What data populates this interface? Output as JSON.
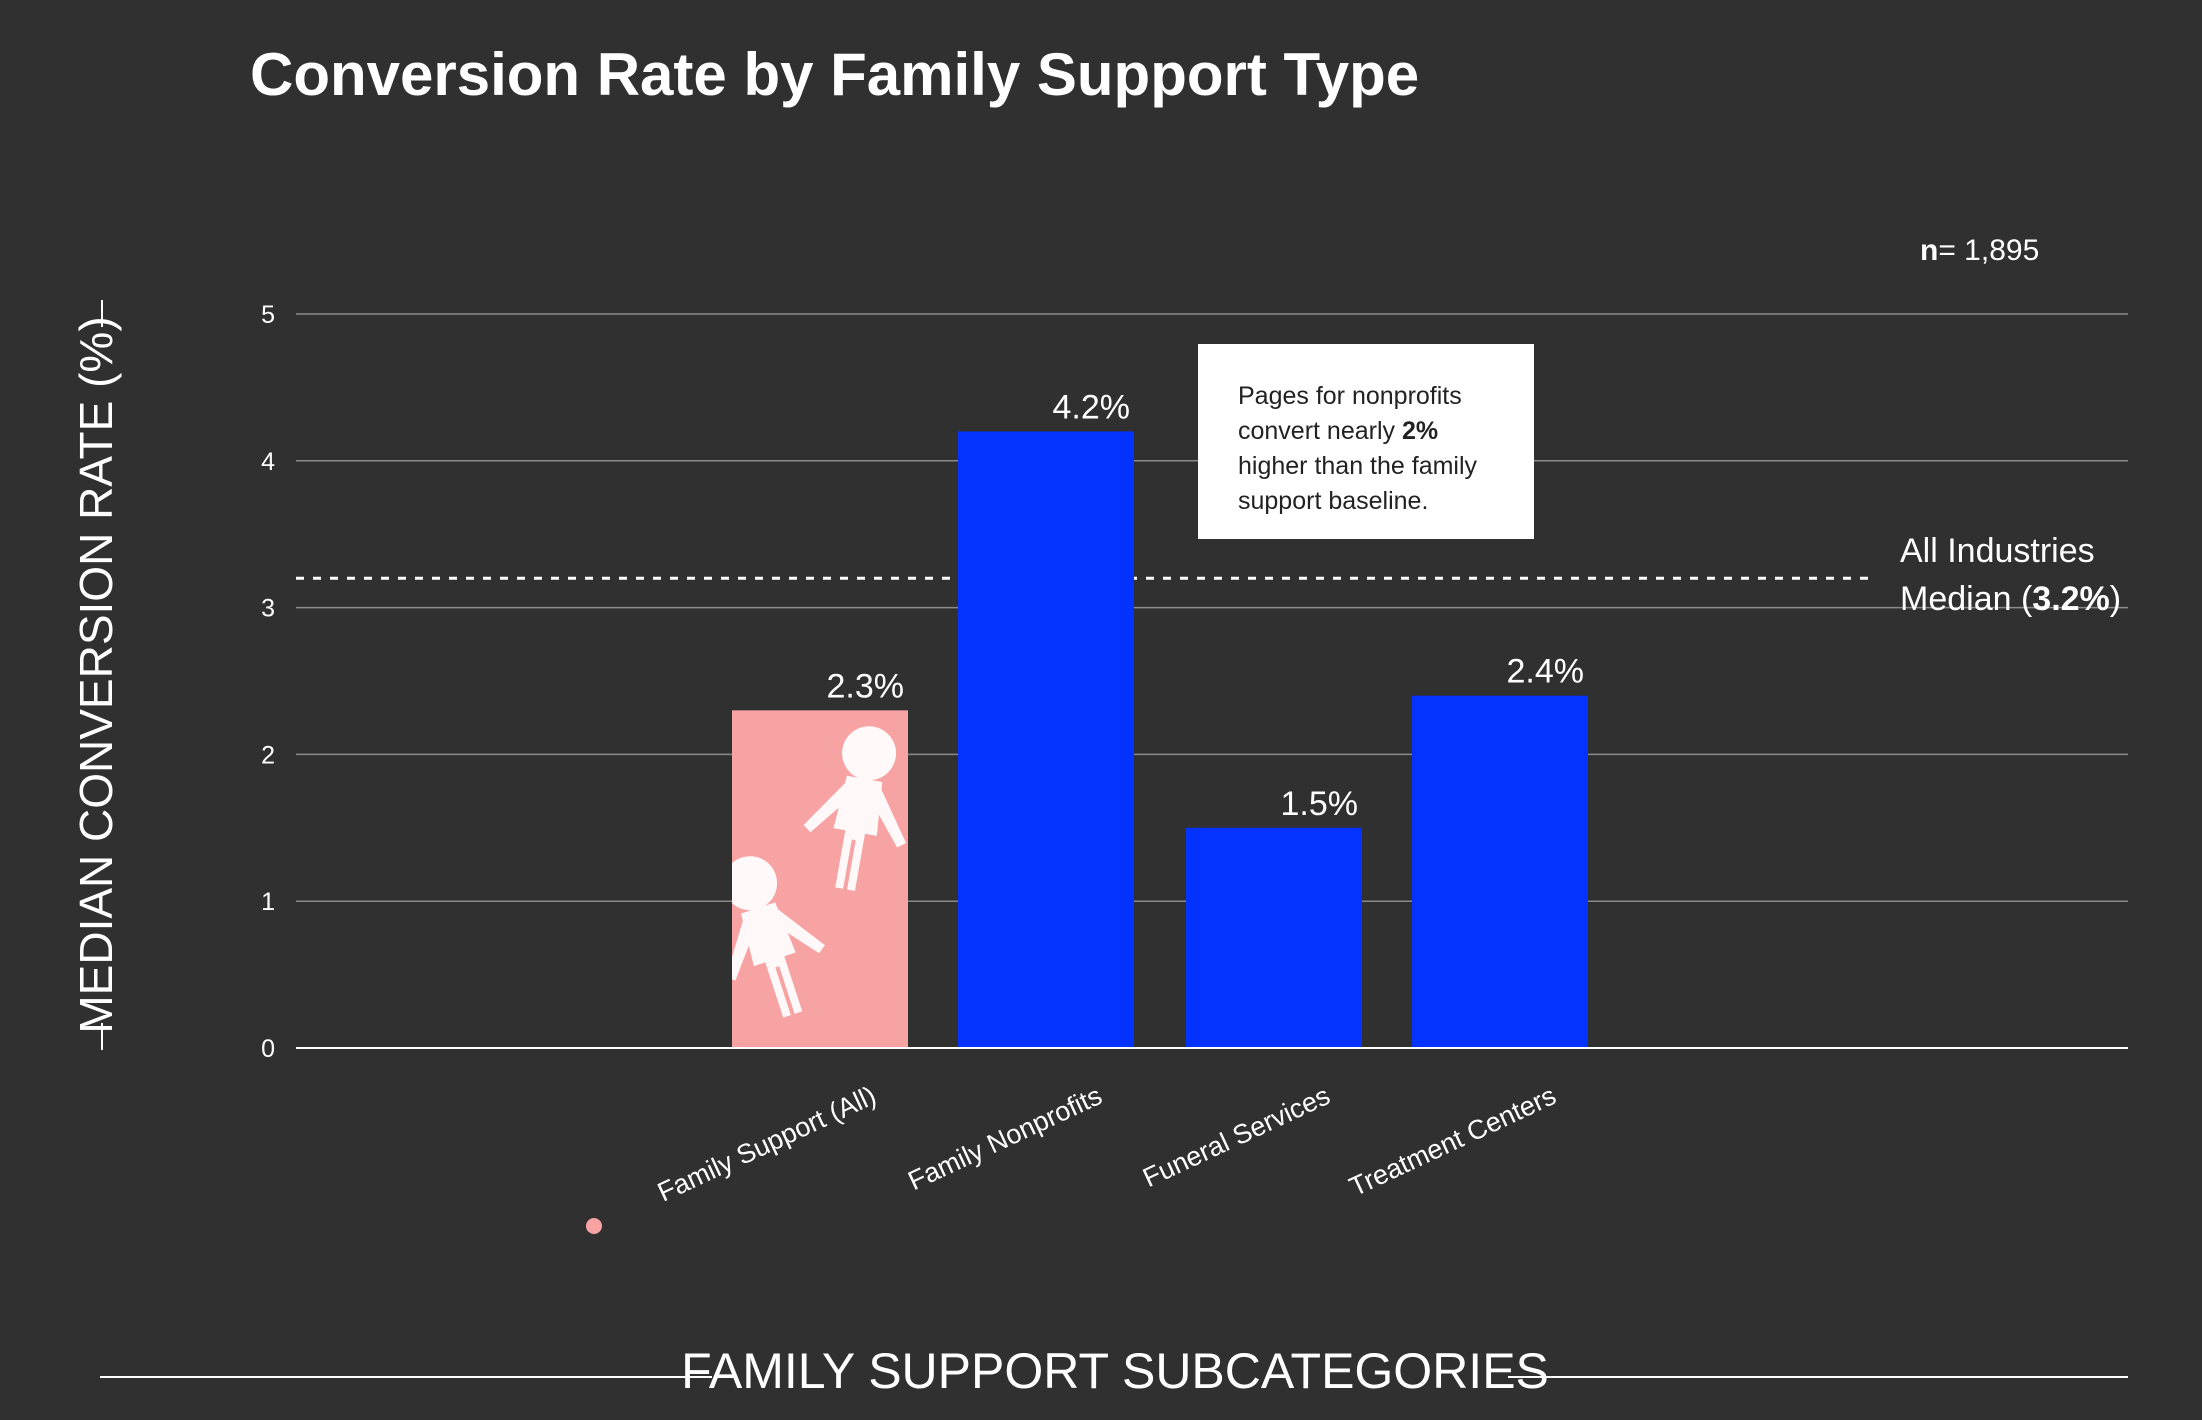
{
  "chart_data": {
    "type": "bar",
    "title": "Conversion Rate by Family Support Type",
    "xlabel": "FAMILY SUPPORT SUBCATEGORIES",
    "ylabel": "MEDIAN CONVERSION RATE (%)",
    "ylim": [
      0,
      5
    ],
    "yticks": [
      "0",
      "1",
      "2",
      "3",
      "4",
      "5"
    ],
    "grid": true,
    "sample_size_label": "n",
    "sample_size_value": "= 1,895",
    "categories": [
      "Family Support (All)",
      "Family Nonprofits",
      "Funeral Services",
      "Treatment Centers"
    ],
    "values": [
      2.3,
      4.2,
      1.5,
      2.4
    ],
    "data_labels": [
      "2.3%",
      "4.2%",
      "1.5%",
      "2.4%"
    ],
    "bar_colors": [
      "#f8a3a3",
      "#0433ff",
      "#0433ff",
      "#0433ff"
    ],
    "highlight_category": "Family Support (All)",
    "reference_line": {
      "value": 3.2,
      "label_line1": "All Industries",
      "label_line2_prefix": "Median (",
      "label_line2_bold": "3.2%",
      "label_line2_suffix": ")"
    },
    "annotation": {
      "line1": "Pages for nonprofits",
      "line2_prefix": "convert nearly ",
      "line2_bold": "2%",
      "line3": "higher than the family",
      "line4": "support baseline."
    }
  }
}
